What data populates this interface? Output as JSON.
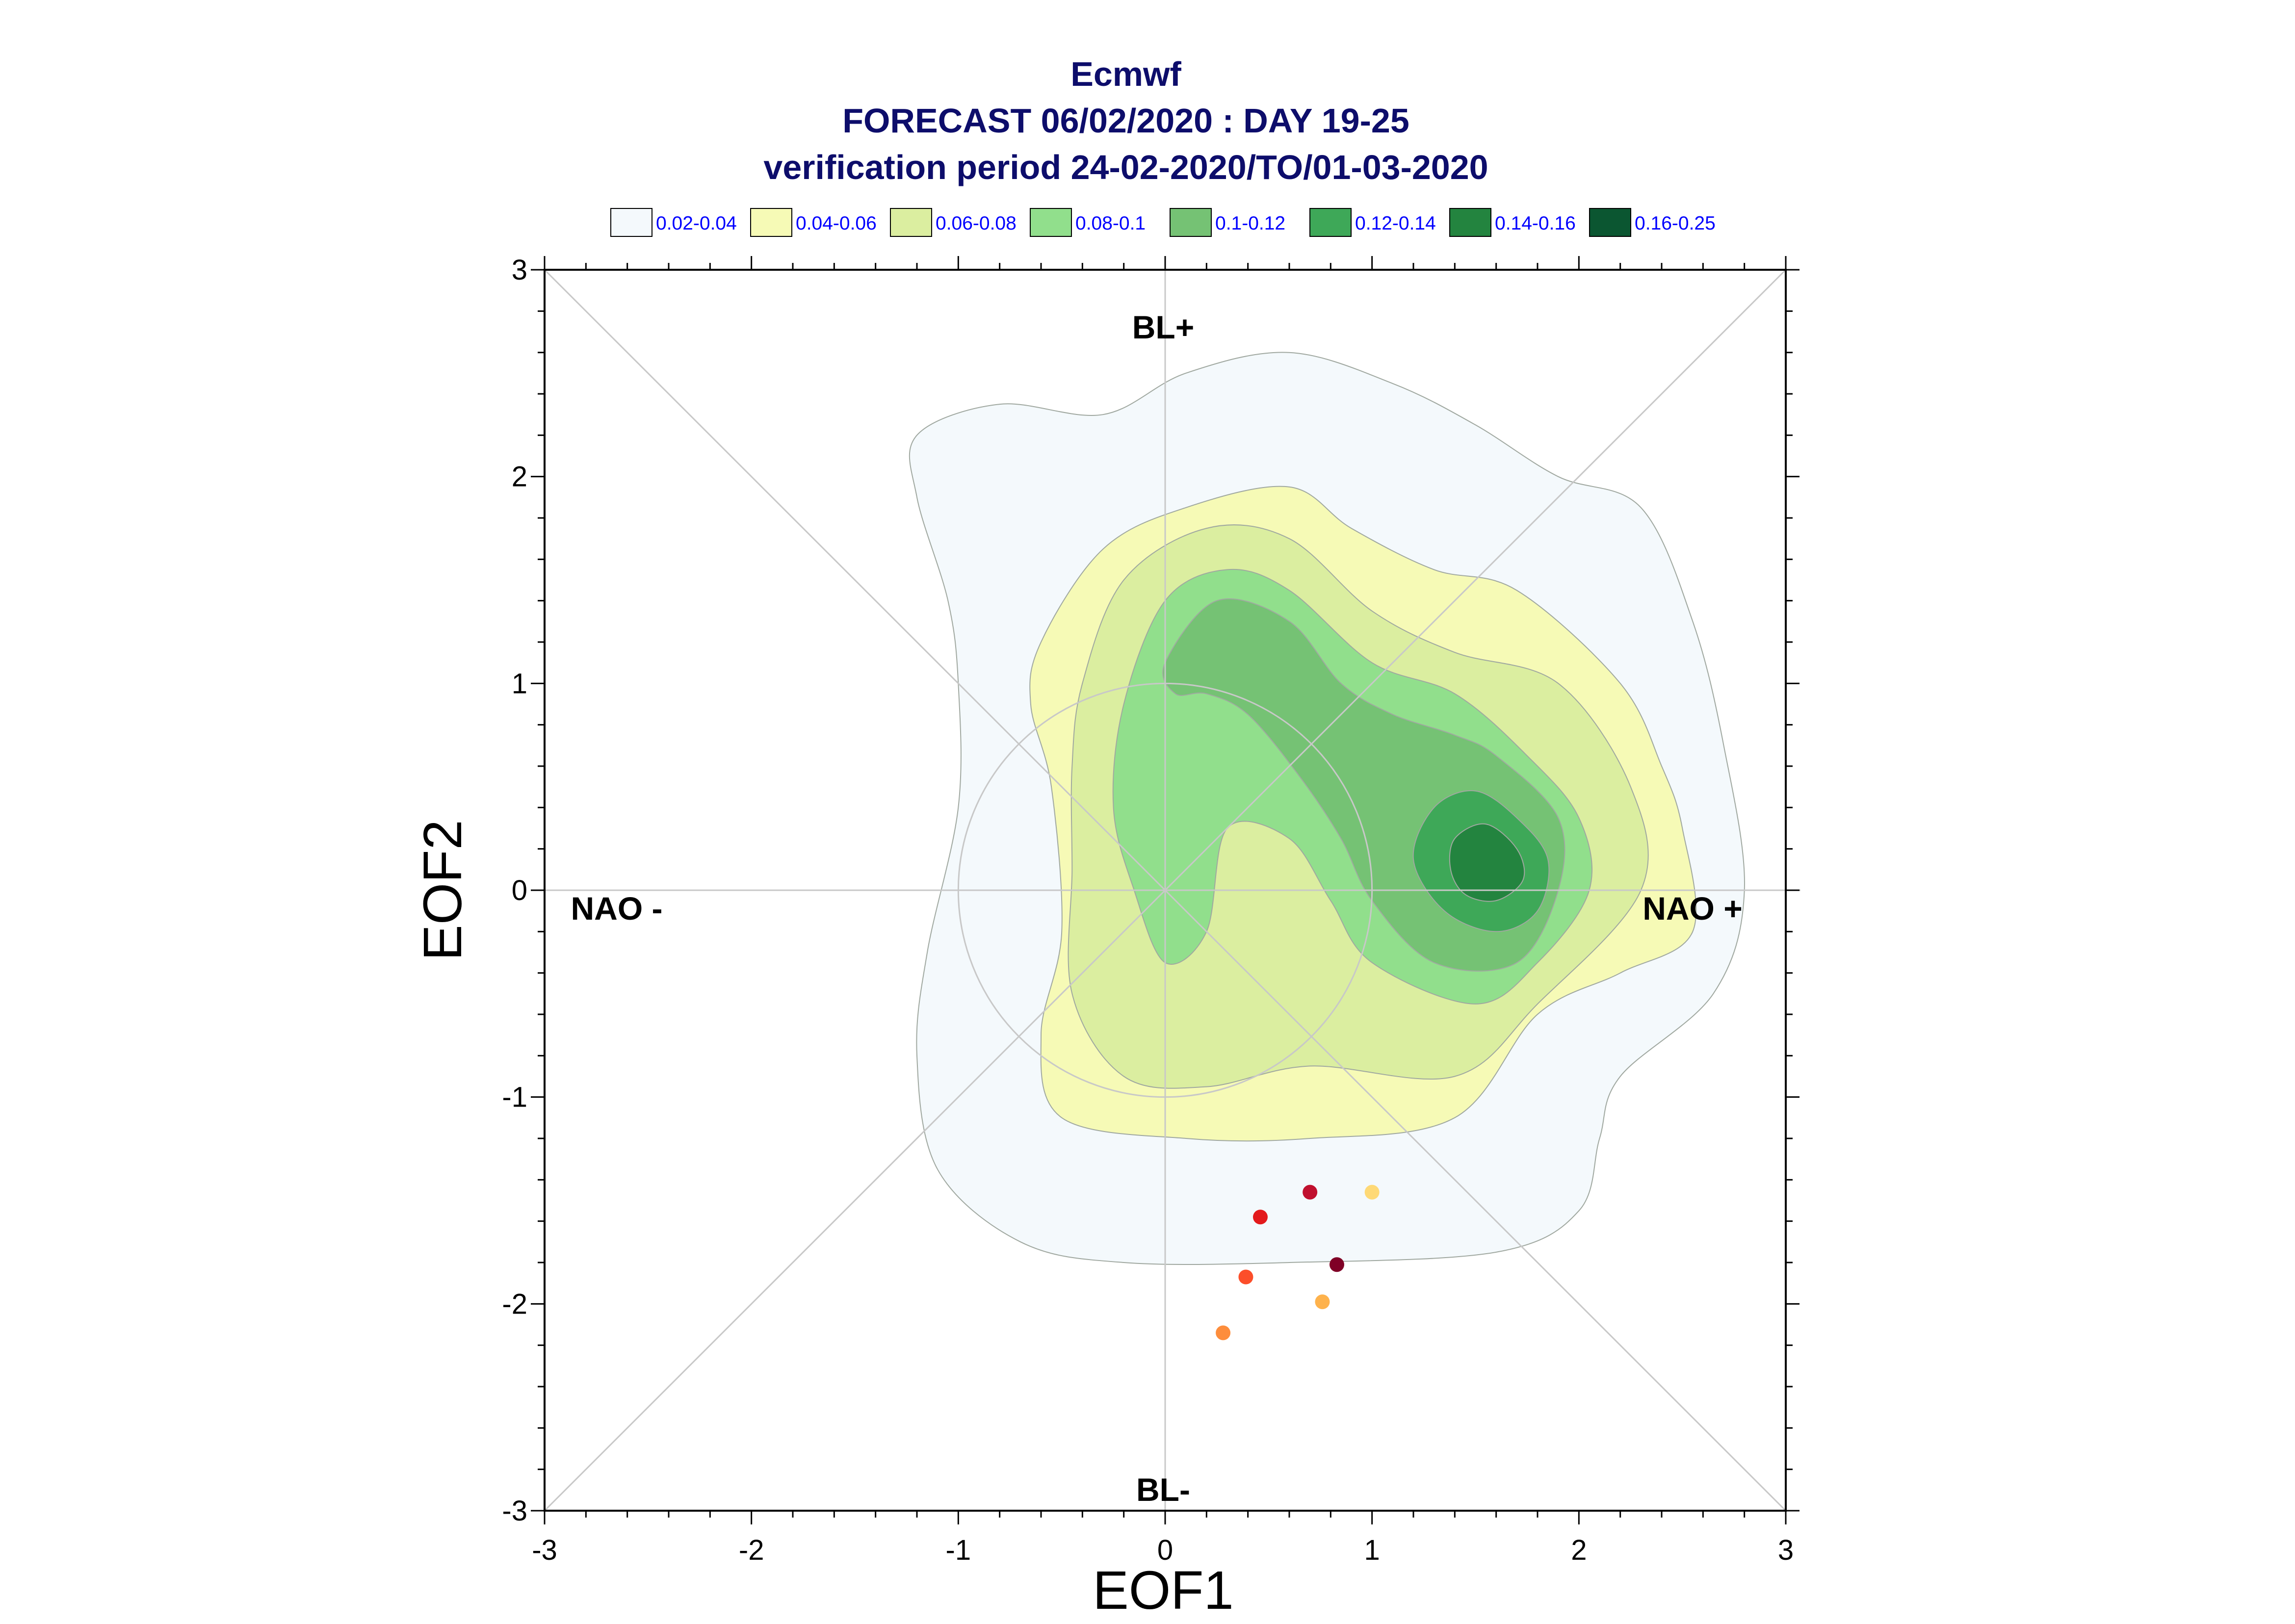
{
  "title": {
    "line1": "Ecmwf",
    "line2": "FORECAST 06/02/2020 : DAY 19-25",
    "line3": "verification period 24-02-2020/TO/01-03-2020"
  },
  "legend": [
    {
      "label": "0.02-0.04",
      "color": "#f4f9fc"
    },
    {
      "label": "0.04-0.06",
      "color": "#f6fab6"
    },
    {
      "label": "0.06-0.08",
      "color": "#dbeea0"
    },
    {
      "label": "0.08-0.1",
      "color": "#91df8c"
    },
    {
      "label": "0.1-0.12",
      "color": "#75c274"
    },
    {
      "label": "0.12-0.14",
      "color": "#3ea858"
    },
    {
      "label": "0.14-0.16",
      "color": "#23843f"
    },
    {
      "label": "0.16-0.25",
      "color": "#0b5631"
    }
  ],
  "regimes": {
    "top": "BL+",
    "bottom": "BL-",
    "left": "NAO -",
    "right": "NAO +"
  },
  "chart_data": {
    "type": "scatter",
    "xlabel": "EOF1",
    "ylabel": "EOF2",
    "xlim": [
      -3,
      3
    ],
    "ylim": [
      -3,
      3
    ],
    "x_ticks": [
      "-3",
      "-2",
      "-1",
      "0",
      "1",
      "2",
      "3"
    ],
    "y_ticks": [
      "-3",
      "-2",
      "-1",
      "0",
      "1",
      "2",
      "3"
    ],
    "grid": false,
    "density_contours": [
      {
        "level": "0.02-0.04",
        "color": "#f4f9fc",
        "path": [
          [
            -1.2,
            2.2
          ],
          [
            -0.8,
            2.35
          ],
          [
            -0.3,
            2.3
          ],
          [
            0.1,
            2.5
          ],
          [
            0.6,
            2.6
          ],
          [
            1.1,
            2.45
          ],
          [
            1.5,
            2.25
          ],
          [
            1.9,
            2.0
          ],
          [
            2.3,
            1.85
          ],
          [
            2.55,
            1.3
          ],
          [
            2.7,
            0.7
          ],
          [
            2.8,
            0.0
          ],
          [
            2.65,
            -0.5
          ],
          [
            2.2,
            -0.9
          ],
          [
            2.1,
            -1.2
          ],
          [
            2.0,
            -1.55
          ],
          [
            1.6,
            -1.75
          ],
          [
            0.6,
            -1.8
          ],
          [
            -0.2,
            -1.8
          ],
          [
            -0.7,
            -1.7
          ],
          [
            -1.1,
            -1.35
          ],
          [
            -1.2,
            -0.8
          ],
          [
            -1.15,
            -0.3
          ],
          [
            -1.0,
            0.4
          ],
          [
            -1.0,
            1.0
          ],
          [
            -1.05,
            1.4
          ],
          [
            -1.2,
            1.9
          ]
        ]
      },
      {
        "level": "0.04-0.06",
        "color": "#f6fab6",
        "path": [
          [
            -0.6,
            1.2
          ],
          [
            -0.3,
            1.65
          ],
          [
            0.1,
            1.85
          ],
          [
            0.6,
            1.95
          ],
          [
            0.9,
            1.75
          ],
          [
            1.3,
            1.55
          ],
          [
            1.7,
            1.45
          ],
          [
            2.2,
            1.0
          ],
          [
            2.4,
            0.6
          ],
          [
            2.5,
            0.3
          ],
          [
            2.55,
            -0.2
          ],
          [
            2.2,
            -0.4
          ],
          [
            1.8,
            -0.6
          ],
          [
            1.4,
            -1.1
          ],
          [
            0.7,
            -1.2
          ],
          [
            0.1,
            -1.2
          ],
          [
            -0.5,
            -1.1
          ],
          [
            -0.6,
            -0.7
          ],
          [
            -0.5,
            -0.2
          ],
          [
            -0.55,
            0.5
          ],
          [
            -0.65,
            0.9
          ]
        ]
      },
      {
        "level": "0.06-0.08",
        "color": "#dbeea0",
        "path": [
          [
            -0.4,
            1.0
          ],
          [
            -0.2,
            1.5
          ],
          [
            0.2,
            1.75
          ],
          [
            0.6,
            1.7
          ],
          [
            1.0,
            1.35
          ],
          [
            1.4,
            1.15
          ],
          [
            1.9,
            1.0
          ],
          [
            2.25,
            0.5
          ],
          [
            2.3,
            0.0
          ],
          [
            1.8,
            -0.55
          ],
          [
            1.4,
            -0.9
          ],
          [
            0.7,
            -0.85
          ],
          [
            0.2,
            -0.95
          ],
          [
            -0.2,
            -0.9
          ],
          [
            -0.45,
            -0.5
          ],
          [
            -0.45,
            0.1
          ],
          [
            -0.45,
            0.6
          ]
        ]
      },
      {
        "level": "0.08-0.1",
        "color": "#91df8c",
        "path": [
          [
            -0.2,
            0.9
          ],
          [
            0.0,
            1.4
          ],
          [
            0.3,
            1.55
          ],
          [
            0.6,
            1.45
          ],
          [
            1.0,
            1.1
          ],
          [
            1.4,
            0.95
          ],
          [
            1.75,
            0.65
          ],
          [
            2.0,
            0.35
          ],
          [
            2.05,
            0.0
          ],
          [
            1.8,
            -0.35
          ],
          [
            1.5,
            -0.55
          ],
          [
            1.0,
            -0.35
          ],
          [
            0.8,
            -0.05
          ],
          [
            0.6,
            0.25
          ],
          [
            0.3,
            0.3
          ],
          [
            0.2,
            -0.2
          ],
          [
            0.0,
            -0.35
          ],
          [
            -0.15,
            0.0
          ],
          [
            -0.25,
            0.4
          ]
        ]
      },
      {
        "level": "0.1-0.12",
        "color": "#75c274",
        "path": [
          [
            0.0,
            1.1
          ],
          [
            0.25,
            1.4
          ],
          [
            0.6,
            1.3
          ],
          [
            0.85,
            1.0
          ],
          [
            1.1,
            0.85
          ],
          [
            1.4,
            0.75
          ],
          [
            1.6,
            0.65
          ],
          [
            1.9,
            0.35
          ],
          [
            1.9,
            0.0
          ],
          [
            1.7,
            -0.35
          ],
          [
            1.3,
            -0.35
          ],
          [
            1.0,
            -0.05
          ],
          [
            0.85,
            0.25
          ],
          [
            0.65,
            0.55
          ],
          [
            0.4,
            0.85
          ],
          [
            0.2,
            0.95
          ],
          [
            0.05,
            0.95
          ]
        ]
      },
      {
        "level": "0.12-0.14",
        "color": "#3ea858",
        "path": [
          [
            1.3,
            0.4
          ],
          [
            1.5,
            0.48
          ],
          [
            1.7,
            0.35
          ],
          [
            1.85,
            0.15
          ],
          [
            1.8,
            -0.1
          ],
          [
            1.6,
            -0.2
          ],
          [
            1.35,
            -0.1
          ],
          [
            1.2,
            0.15
          ]
        ]
      },
      {
        "level": "0.14-0.16",
        "color": "#23843f",
        "path": [
          [
            1.4,
            0.25
          ],
          [
            1.55,
            0.32
          ],
          [
            1.7,
            0.2
          ],
          [
            1.73,
            0.05
          ],
          [
            1.6,
            -0.05
          ],
          [
            1.45,
            -0.02
          ],
          [
            1.38,
            0.1
          ]
        ]
      }
    ],
    "series": [
      {
        "x": 0.7,
        "y": -1.46,
        "color": "#c0102e"
      },
      {
        "x": 1.0,
        "y": -1.46,
        "color": "#fed976"
      },
      {
        "x": 0.46,
        "y": -1.58,
        "color": "#e31a1c"
      },
      {
        "x": 0.83,
        "y": -1.81,
        "color": "#800026"
      },
      {
        "x": 0.39,
        "y": -1.87,
        "color": "#fc4e2a"
      },
      {
        "x": 0.76,
        "y": -1.99,
        "color": "#feb24c"
      },
      {
        "x": 0.28,
        "y": -2.14,
        "color": "#fd8d3c"
      }
    ]
  }
}
